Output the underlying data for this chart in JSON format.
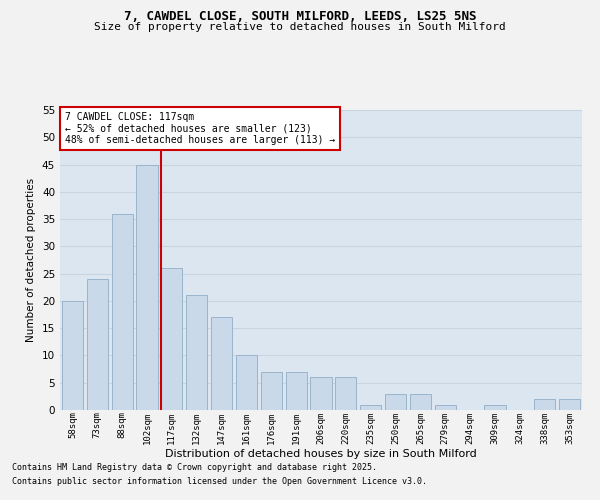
{
  "title_line1": "7, CAWDEL CLOSE, SOUTH MILFORD, LEEDS, LS25 5NS",
  "title_line2": "Size of property relative to detached houses in South Milford",
  "xlabel": "Distribution of detached houses by size in South Milford",
  "ylabel": "Number of detached properties",
  "categories": [
    "58sqm",
    "73sqm",
    "88sqm",
    "102sqm",
    "117sqm",
    "132sqm",
    "147sqm",
    "161sqm",
    "176sqm",
    "191sqm",
    "206sqm",
    "220sqm",
    "235sqm",
    "250sqm",
    "265sqm",
    "279sqm",
    "294sqm",
    "309sqm",
    "324sqm",
    "338sqm",
    "353sqm"
  ],
  "values": [
    20,
    24,
    36,
    45,
    26,
    21,
    17,
    10,
    7,
    7,
    6,
    6,
    1,
    3,
    3,
    1,
    0,
    1,
    0,
    2,
    2
  ],
  "bar_color": "#c9d9ea",
  "bar_edge_color": "#9ab5cc",
  "vline_x_index": 4,
  "vline_color": "#cc0000",
  "annotation_text": "7 CAWDEL CLOSE: 117sqm\n← 52% of detached houses are smaller (123)\n48% of semi-detached houses are larger (113) →",
  "annotation_box_color": "#ffffff",
  "annotation_box_edge": "#cc0000",
  "footer_line1": "Contains HM Land Registry data © Crown copyright and database right 2025.",
  "footer_line2": "Contains public sector information licensed under the Open Government Licence v3.0.",
  "ylim": [
    0,
    55
  ],
  "yticks": [
    0,
    5,
    10,
    15,
    20,
    25,
    30,
    35,
    40,
    45,
    50,
    55
  ],
  "grid_color": "#c8d4e0",
  "bg_color": "#dce6f0",
  "fig_bg_color": "#f2f2f2"
}
